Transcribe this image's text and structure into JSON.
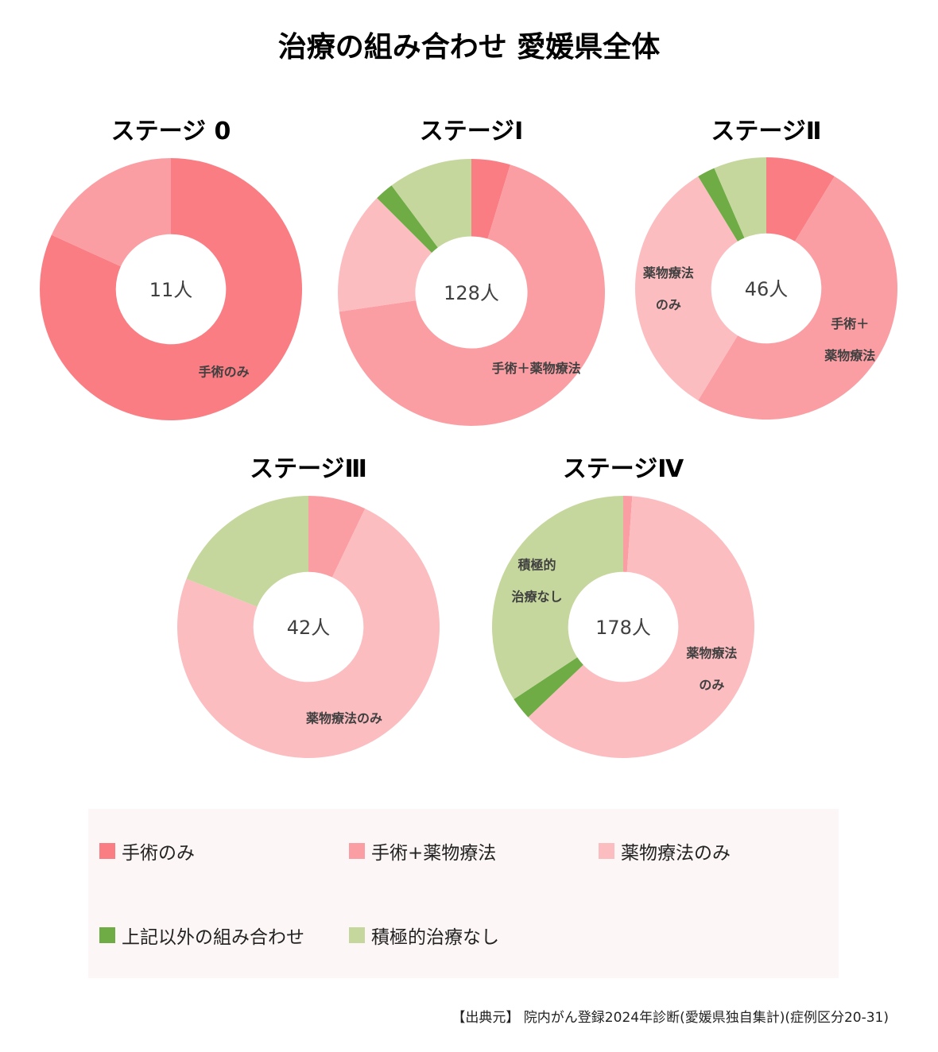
{
  "title": "治療の組み合わせ 愛媛県全体",
  "source": "【出典元】 院内がん登録2024年診断(愛媛県独自集計)(症例区分20-31)",
  "colors": {
    "surgery_only": "#fa7d83",
    "surgery_drug": "#fb9ea3",
    "drug_only": "#fcbdc0",
    "other_combo": "#6fac46",
    "no_treatment": "#c5d79c"
  },
  "legend": [
    {
      "key": "surgery_only",
      "label": "手術のみ"
    },
    {
      "key": "surgery_drug",
      "label": "手術+薬物療法"
    },
    {
      "key": "drug_only",
      "label": "薬物療法のみ"
    },
    {
      "key": "other_combo",
      "label": "上記以外の組み合わせ"
    },
    {
      "key": "no_treatment",
      "label": "積極的治療なし"
    }
  ],
  "chart_data": [
    {
      "type": "pie",
      "title": "ステージ 0",
      "center_label": "11人",
      "categories": [
        "手術のみ",
        "手術+薬物療法",
        "薬物療法のみ",
        "上記以外の組み合わせ",
        "積極的治療なし"
      ],
      "values": [
        81.8,
        18.2,
        0,
        0,
        0
      ],
      "slice_labels": [
        {
          "index": 0,
          "lines": [
            "手術のみ"
          ]
        }
      ]
    },
    {
      "type": "pie",
      "title": "ステージⅠ",
      "center_label": "128人",
      "categories": [
        "手術のみ",
        "手術+薬物療法",
        "薬物療法のみ",
        "上記以外の組み合わせ",
        "積極的治療なし"
      ],
      "values": [
        4.7,
        68.0,
        14.8,
        2.3,
        10.2
      ],
      "slice_labels": [
        {
          "index": 1,
          "lines": [
            "手術＋薬物療法"
          ]
        }
      ]
    },
    {
      "type": "pie",
      "title": "ステージⅡ",
      "center_label": "46人",
      "categories": [
        "手術のみ",
        "手術+薬物療法",
        "薬物療法のみ",
        "上記以外の組み合わせ",
        "積極的治療なし"
      ],
      "values": [
        8.7,
        50.0,
        32.6,
        2.2,
        6.5
      ],
      "slice_labels": [
        {
          "index": 1,
          "lines": [
            "手術＋",
            "薬物療法"
          ]
        },
        {
          "index": 2,
          "lines": [
            "薬物療法",
            "のみ"
          ]
        }
      ]
    },
    {
      "type": "pie",
      "title": "ステージⅢ",
      "center_label": "42人",
      "categories": [
        "手術のみ",
        "手術+薬物療法",
        "薬物療法のみ",
        "上記以外の組み合わせ",
        "積極的治療なし"
      ],
      "values": [
        0,
        7.1,
        73.8,
        0,
        19.0
      ],
      "slice_labels": [
        {
          "index": 2,
          "lines": [
            "薬物療法のみ"
          ]
        }
      ]
    },
    {
      "type": "pie",
      "title": "ステージⅣ",
      "center_label": "178人",
      "categories": [
        "手術のみ",
        "手術+薬物療法",
        "薬物療法のみ",
        "上記以外の組み合わせ",
        "積極的治療なし"
      ],
      "values": [
        0,
        1.1,
        61.8,
        2.8,
        34.3
      ],
      "slice_labels": [
        {
          "index": 2,
          "lines": [
            "薬物療法",
            "のみ"
          ]
        },
        {
          "index": 4,
          "lines": [
            "積極的",
            "治療なし"
          ]
        }
      ]
    }
  ]
}
